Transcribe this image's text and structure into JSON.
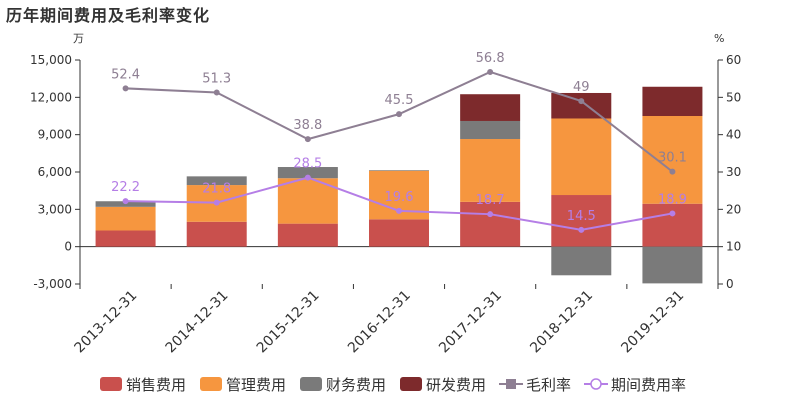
{
  "chart_data": {
    "type": "bar",
    "title": "历年期间费用及毛利率变化",
    "categories": [
      "2013-12-31",
      "2014-12-31",
      "2015-12-31",
      "2016-12-31",
      "2017-12-31",
      "2018-12-31",
      "2019-12-31"
    ],
    "y_left": {
      "unit": "万",
      "range": [
        -3000,
        15000
      ],
      "ticks": [
        "15,000",
        "12,000",
        "9,000",
        "6,000",
        "3,000",
        "0",
        "-3,000"
      ]
    },
    "y_right": {
      "unit": "%",
      "range": [
        0,
        60
      ],
      "ticks": [
        "60",
        "50",
        "40",
        "30",
        "20",
        "10",
        "0"
      ]
    },
    "series": [
      {
        "name": "销售费用",
        "kind": "bar",
        "color": "#c9504d",
        "values": [
          1300,
          2000,
          1850,
          2200,
          3600,
          4150,
          3450
        ]
      },
      {
        "name": "管理费用",
        "kind": "bar",
        "color": "#f6963f",
        "values": [
          1900,
          2950,
          3650,
          3900,
          5050,
          6150,
          7050
        ]
      },
      {
        "name": "财务费用",
        "kind": "bar",
        "color": "#7a7a7a",
        "values": [
          450,
          700,
          900,
          50,
          1450,
          -2300,
          -2950
        ]
      },
      {
        "name": "研发费用",
        "kind": "bar",
        "color": "#7d2a2c",
        "values": [
          0,
          0,
          0,
          0,
          2150,
          2050,
          2350
        ]
      },
      {
        "name": "毛利率",
        "kind": "line",
        "axis": "right",
        "color": "#8e7f93",
        "values": [
          52.4,
          51.3,
          38.8,
          45.5,
          56.8,
          49,
          30.1
        ],
        "labels": [
          "52.4",
          "51.3",
          "38.8",
          "45.5",
          "56.8",
          "49",
          "30.1"
        ]
      },
      {
        "name": "期间费用率",
        "kind": "line",
        "axis": "right",
        "color": "#b57ee6",
        "values": [
          22.2,
          21.8,
          28.5,
          19.6,
          18.7,
          14.5,
          18.9
        ],
        "labels": [
          "22.2",
          "21.8",
          "28.5",
          "19.6",
          "18.7",
          "14.5",
          "18.9"
        ]
      }
    ],
    "legend_position": "bottom",
    "grid": false
  }
}
